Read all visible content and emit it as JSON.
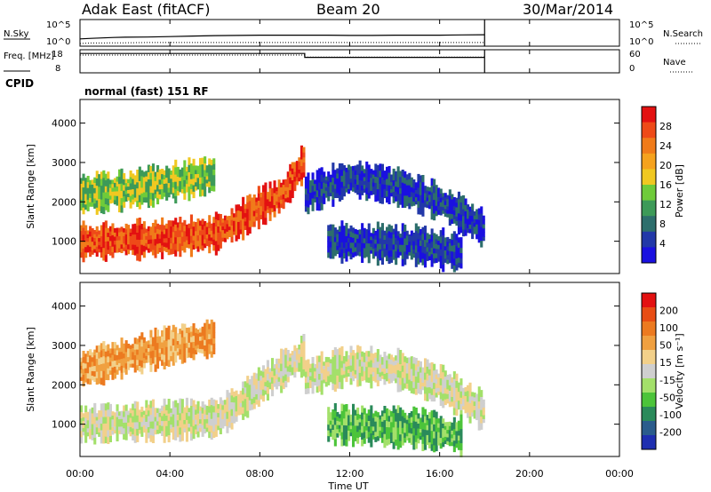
{
  "header": {
    "station": "Adak East (fitACF)",
    "beam": "Beam 20",
    "date": "30/Mar/2014"
  },
  "chart_data": [
    {
      "type": "line",
      "panel": "noise",
      "left_label": "N.Sky",
      "right_label": "N.Search",
      "yticks_left": [
        "10^5",
        "10^0"
      ],
      "yticks_right": [
        "10^5",
        "10^0"
      ],
      "x_hours": [
        0,
        0.5,
        1,
        1.5,
        2,
        3,
        4,
        5,
        6,
        7,
        8,
        9,
        10,
        11,
        12,
        13,
        14,
        15,
        16,
        17,
        18
      ],
      "n_sky_log": [
        1.2,
        1.3,
        1.4,
        1.5,
        1.55,
        1.6,
        1.7,
        1.8,
        1.9,
        1.95,
        2.0,
        2.0,
        2.0,
        2.0,
        1.95,
        1.95,
        2.0,
        2.0,
        2.0,
        2.05,
        2.1
      ],
      "n_search_log": [
        0.2,
        0.3,
        0.3,
        0.35,
        0.35,
        0.4,
        0.4,
        0.4,
        0.4,
        0.4,
        0.4,
        0.4,
        0.4,
        0.4,
        0.4,
        0.4,
        0.4,
        0.4,
        0.4,
        0.4,
        0.4
      ]
    },
    {
      "type": "line",
      "panel": "frequency",
      "left_label": "Freq. [MHz]",
      "right_label": "Nave",
      "yticks_left": [
        "18",
        "8"
      ],
      "yticks_right": [
        "60",
        "0"
      ],
      "series": [
        {
          "name": "Freq",
          "x": [
            0,
            10,
            10,
            18
          ],
          "y": [
            17.0,
            17.0,
            15.0,
            15.0
          ]
        },
        {
          "name": "Nave",
          "x": [
            0,
            10,
            10,
            18
          ],
          "y": [
            49,
            49,
            43,
            43
          ]
        }
      ]
    },
    {
      "type": "text",
      "panel": "cpid",
      "label": "CPID",
      "value": "normal (fast) 151 RF"
    },
    {
      "type": "heatmap",
      "panel": "power",
      "ylabel": "Slant Range [km]",
      "yticks": [
        "1000",
        "2000",
        "3000",
        "4000"
      ],
      "ylim": [
        180,
        4600
      ],
      "xlim": [
        0,
        24
      ],
      "colorbar": {
        "label": "Power [dB]",
        "ticks": [
          "4",
          "8",
          "12",
          "16",
          "20",
          "24",
          "28"
        ],
        "colors": [
          "#1a10e0",
          "#2238a8",
          "#2d6e6c",
          "#3d9a58",
          "#6fcb3a",
          "#f0c821",
          "#f5a21e",
          "#f07b1a",
          "#ee4a18",
          "#e31111"
        ]
      },
      "bands": [
        {
          "x": [
            0,
            1,
            2,
            3,
            4,
            5,
            6,
            7,
            8,
            9,
            10
          ],
          "y": [
            1000,
            1000,
            1050,
            1050,
            1100,
            1150,
            1200,
            1500,
            1900,
            2200,
            3100
          ],
          "level": 8
        },
        {
          "x": [
            0,
            2,
            4,
            6
          ],
          "y": [
            2200,
            2300,
            2500,
            2700
          ],
          "level": 4
        },
        {
          "x": [
            10,
            12,
            14,
            16,
            18
          ],
          "y": [
            2200,
            2600,
            2400,
            2000,
            1300
          ],
          "level": 1
        },
        {
          "x": [
            11,
            13,
            15,
            17
          ],
          "y": [
            1000,
            950,
            900,
            700
          ],
          "level": 1
        }
      ]
    },
    {
      "type": "heatmap",
      "panel": "velocity",
      "ylabel": "Slant Range [km]",
      "yticks": [
        "1000",
        "2000",
        "3000",
        "4000"
      ],
      "ylim": [
        180,
        4600
      ],
      "xlim": [
        0,
        24
      ],
      "xticks": [
        "00:00",
        "04:00",
        "08:00",
        "12:00",
        "16:00",
        "20:00",
        "00:00"
      ],
      "xlabel": "Time UT",
      "colorbar": {
        "label": "Velocity [m s⁻¹]",
        "ticks": [
          "200",
          "100",
          "50",
          "15",
          "-15",
          "-50",
          "-100",
          "-200"
        ],
        "colors": [
          "#1f2fb0",
          "#2b5c8c",
          "#2a8a5a",
          "#4cc43a",
          "#a3e06a",
          "#cfcfcf",
          "#f2d08a",
          "#f0a040",
          "#ec7a20",
          "#e84d14",
          "#e31111"
        ]
      },
      "bands": [
        {
          "x": [
            0,
            2,
            4,
            6,
            7,
            8,
            9,
            10
          ],
          "y": [
            1000,
            1050,
            1100,
            1150,
            1500,
            2000,
            2400,
            2800
          ],
          "level": 5
        },
        {
          "x": [
            0,
            2,
            4,
            6
          ],
          "y": [
            2400,
            2700,
            3000,
            3200
          ],
          "level": 7
        },
        {
          "x": [
            10,
            12,
            14,
            16,
            18
          ],
          "y": [
            2200,
            2500,
            2400,
            2000,
            1300
          ],
          "level": 5
        },
        {
          "x": [
            11,
            13,
            15,
            17
          ],
          "y": [
            1000,
            950,
            900,
            700
          ],
          "level": 3
        }
      ]
    }
  ]
}
